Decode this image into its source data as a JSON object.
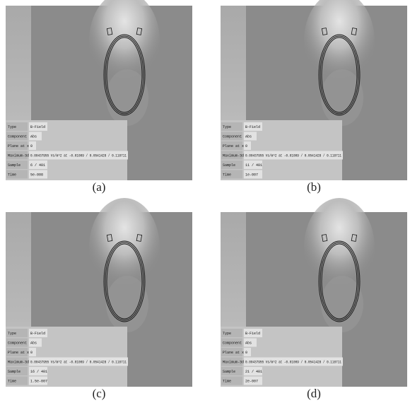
{
  "panels": [
    {
      "caption": "(a)",
      "rows": [
        [
          "Type",
          "B-Field"
        ],
        [
          "Component",
          "Abs"
        ],
        [
          "Plane at x",
          "0"
        ],
        [
          "Maximum-3d",
          "0.00437955 Vs/m^2 at -0.01009 / 0.0541428 / 0.118711"
        ],
        [
          "Sample",
          "6 / 401"
        ],
        [
          "Time",
          "5e-008"
        ]
      ]
    },
    {
      "caption": "(b)",
      "rows": [
        [
          "Type",
          "B-Field"
        ],
        [
          "Component",
          "Abs"
        ],
        [
          "Plane at x",
          "0"
        ],
        [
          "Maximum-3d",
          "0.00437955 Vs/m^2 at -0.01009 / 0.0541428 / 0.118711"
        ],
        [
          "Sample",
          "11 / 401"
        ],
        [
          "Time",
          "1e-007"
        ]
      ]
    },
    {
      "caption": "(c)",
      "rows": [
        [
          "Type",
          "B-Field"
        ],
        [
          "Component",
          "Abs"
        ],
        [
          "Plane at x",
          "0"
        ],
        [
          "Maximum-3d",
          "0.00437955 Vs/m^2 at -0.01009 / 0.0541428 / 0.118711"
        ],
        [
          "Sample",
          "16 / 401"
        ],
        [
          "Time",
          "1.5e-007"
        ]
      ]
    },
    {
      "caption": "(d)",
      "rows": [
        [
          "Type",
          "B-Field"
        ],
        [
          "Component",
          "Abs"
        ],
        [
          "Plane at x",
          "0"
        ],
        [
          "Maximum-3d",
          "0.00437955 Vs/m^2 at -0.01009 / 0.0541428 / 0.118711"
        ],
        [
          "Sample",
          "21 / 401"
        ],
        [
          "Time",
          "2e-007"
        ]
      ]
    }
  ]
}
